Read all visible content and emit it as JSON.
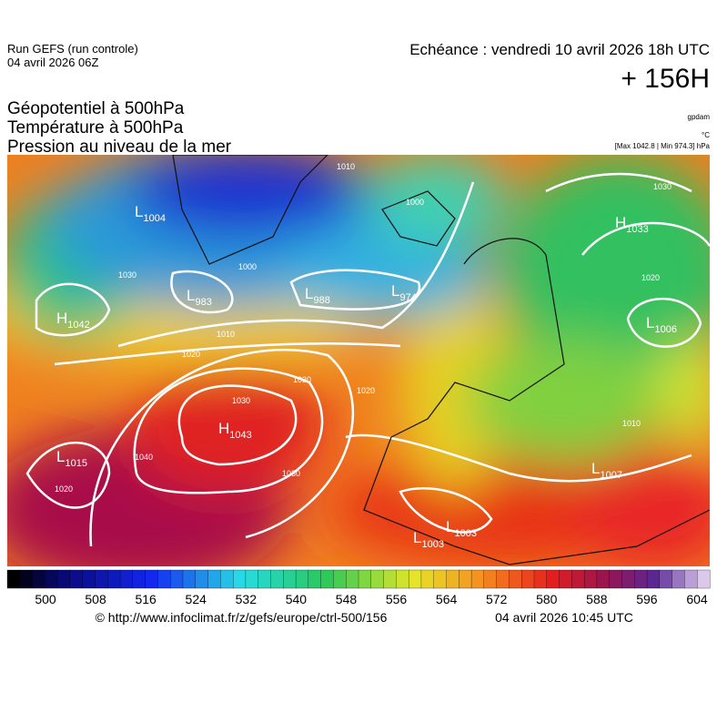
{
  "header": {
    "run": "Run GEFS (run controle)",
    "run_date": "04 avril 2026 06Z",
    "echeance": "Echéance : vendredi 10 avril 2026 18h UTC",
    "lead": "+ 156H",
    "fields": [
      "Géopotentiel à 500hPa",
      "Température à 500hPa",
      "Pression au niveau de la mer"
    ],
    "units": [
      "gpdam",
      "°C",
      "[Max 1042.8 | Min 974.3] hPa"
    ]
  },
  "map": {
    "centers": [
      {
        "letter": "L",
        "value": 1004
      },
      {
        "letter": "L",
        "value": 983
      },
      {
        "letter": "L",
        "value": 988
      },
      {
        "letter": "L",
        "value": 974
      },
      {
        "letter": "H",
        "value": 1042
      },
      {
        "letter": "H",
        "value": 1033
      },
      {
        "letter": "L",
        "value": 1006
      },
      {
        "letter": "H",
        "value": 1043
      },
      {
        "letter": "L",
        "value": 1015
      },
      {
        "letter": "L",
        "value": 1003
      },
      {
        "letter": "L",
        "value": 1003
      },
      {
        "letter": "L",
        "value": 1007
      }
    ],
    "isobar_labels": [
      1010,
      1000,
      1010,
      1020,
      1030,
      1040,
      1030,
      1030,
      1020,
      1030,
      1020,
      1010,
      1020,
      1000,
      1030
    ]
  },
  "colorbar": {
    "labels": [
      500,
      508,
      516,
      524,
      532,
      540,
      548,
      556,
      564,
      572,
      580,
      588,
      596,
      604
    ]
  },
  "footer": {
    "source": "© http://www.infoclimat.fr/z/gefs/europe/ctrl-500/156",
    "generated": "04 avril 2026 10:45 UTC"
  }
}
